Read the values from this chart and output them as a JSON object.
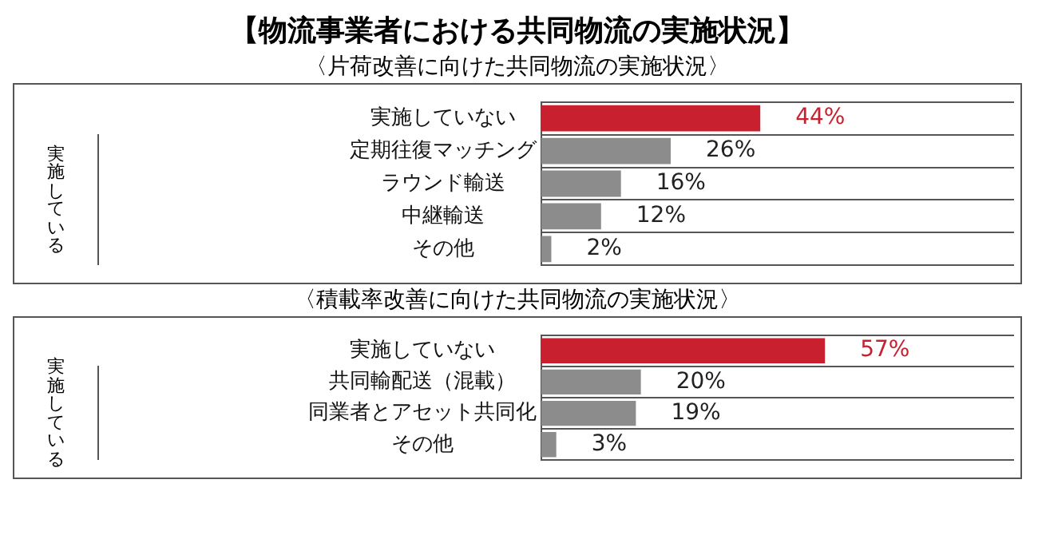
{
  "chart_data": [
    {
      "type": "bar",
      "orientation": "horizontal",
      "title": "【物流事業者における共同物流の実施状況】",
      "subtitle": "〈片荷改善に向けた共同物流の実施状況〉",
      "categories": [
        "実施していない",
        "定期往復マッチング",
        "ラウンド輸送",
        "中継輸送",
        "その他"
      ],
      "values": [
        44,
        26,
        16,
        12,
        2
      ],
      "colors": [
        "#c8202f",
        "#8c8c8c",
        "#8c8c8c",
        "#8c8c8c",
        "#8c8c8c"
      ],
      "value_labels": [
        "44%",
        "26%",
        "16%",
        "12%",
        "2%"
      ],
      "annotations": [
        "実施している"
      ],
      "xlim": [
        0,
        95
      ],
      "grid": "y"
    },
    {
      "type": "bar",
      "orientation": "horizontal",
      "subtitle": "〈積載率改善に向けた共同物流の実施状況〉",
      "categories": [
        "実施していない",
        "共同輸配送（混載）",
        "同業者とアセット共同化",
        "その他"
      ],
      "values": [
        57,
        20,
        19,
        3
      ],
      "colors": [
        "#c8202f",
        "#8c8c8c",
        "#8c8c8c",
        "#8c8c8c"
      ],
      "value_labels": [
        "57%",
        "20%",
        "19%",
        "3%"
      ],
      "annotations": [
        "実施している"
      ],
      "xlim": [
        0,
        95
      ],
      "grid": "y"
    }
  ]
}
